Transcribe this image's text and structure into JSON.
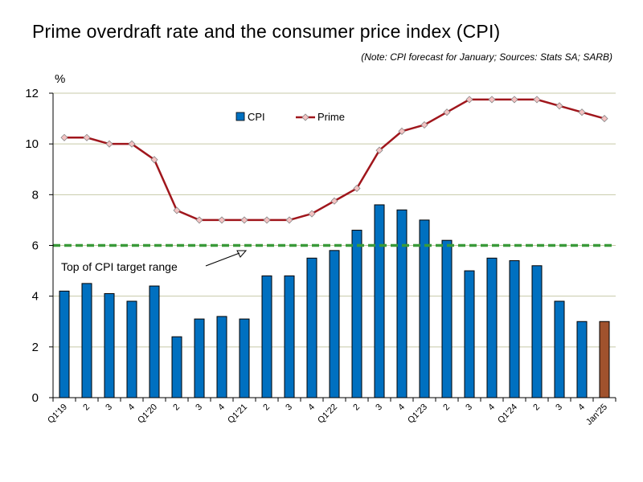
{
  "title": "Prime overdraft rate and the consumer price index (CPI)",
  "note": "(Note: CPI forecast for January; Sources: Stats SA; SARB)",
  "colors": {
    "cpi_bar": "#0070C0",
    "cpi_bar_forecast": "#A0522D",
    "prime_line": "#A0161C",
    "prime_marker": "#F4C2C2",
    "target_line": "#3A9A3A",
    "grid": "#C7C9A8"
  },
  "chart_data": {
    "type": "bar",
    "ylabel": "%",
    "ylim": [
      0,
      12
    ],
    "yticks": [
      0,
      2,
      4,
      6,
      8,
      10,
      12
    ],
    "categories": [
      "Q1'19",
      "2",
      "3",
      "4",
      "Q1'20",
      "2",
      "3",
      "4",
      "Q1'21",
      "2",
      "3",
      "4",
      "Q1'22",
      "2",
      "3",
      "4",
      "Q1'23",
      "2",
      "3",
      "4",
      "Q1'24",
      "2",
      "3",
      "4",
      "Jan'25"
    ],
    "series": [
      {
        "name": "CPI",
        "type": "bar",
        "values": [
          4.2,
          4.5,
          4.1,
          3.8,
          4.4,
          2.4,
          3.1,
          3.2,
          3.1,
          4.8,
          4.8,
          5.5,
          5.8,
          6.6,
          7.6,
          7.4,
          7.0,
          6.2,
          5.0,
          5.5,
          5.4,
          5.2,
          3.8,
          3.0,
          3.0
        ],
        "forecast_index": 24
      },
      {
        "name": "Prime",
        "type": "line",
        "values": [
          10.25,
          10.25,
          10.0,
          10.0,
          9.38,
          7.38,
          7.0,
          7.0,
          7.0,
          7.0,
          7.0,
          7.25,
          7.75,
          8.25,
          9.75,
          10.5,
          10.75,
          11.25,
          11.75,
          11.75,
          11.75,
          11.75,
          11.5,
          11.25,
          11.0
        ]
      }
    ],
    "reference_line": {
      "value": 6,
      "label": "Top of CPI target range"
    },
    "legend": [
      "CPI",
      "Prime"
    ]
  }
}
